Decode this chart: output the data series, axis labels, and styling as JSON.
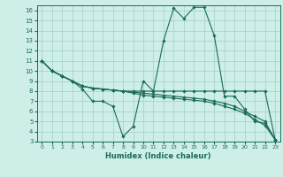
{
  "title": "",
  "xlabel": "Humidex (Indice chaleur)",
  "ylabel": "",
  "xlim": [
    -0.5,
    23.5
  ],
  "ylim": [
    3,
    16.5
  ],
  "xticks": [
    0,
    1,
    2,
    3,
    4,
    5,
    6,
    7,
    8,
    9,
    10,
    11,
    12,
    13,
    14,
    15,
    16,
    17,
    18,
    19,
    20,
    21,
    22,
    23
  ],
  "yticks": [
    3,
    4,
    5,
    6,
    7,
    8,
    9,
    10,
    11,
    12,
    13,
    14,
    15,
    16
  ],
  "bg_color": "#ceeee8",
  "grid_color": "#a8d4cc",
  "line_color": "#1a6b5a",
  "lines": [
    {
      "x": [
        0,
        1,
        2,
        3,
        4,
        5,
        6,
        7,
        8,
        9,
        10,
        11,
        12,
        13,
        14,
        15,
        16,
        17,
        18,
        19,
        20,
        21,
        22,
        23
      ],
      "y": [
        11,
        10,
        9.5,
        9,
        8.2,
        7,
        7,
        6.5,
        3.5,
        4.5,
        9,
        8,
        13,
        16.2,
        15.2,
        16.3,
        16.3,
        13.5,
        7.5,
        7.5,
        6.2,
        5,
        4.8,
        3.2
      ]
    },
    {
      "x": [
        0,
        1,
        2,
        3,
        4,
        5,
        6,
        7,
        8,
        9,
        10,
        11,
        12,
        13,
        14,
        15,
        16,
        17,
        18,
        19,
        20,
        21,
        22,
        23
      ],
      "y": [
        11,
        10,
        9.5,
        9,
        8.5,
        8.3,
        8.2,
        8.1,
        8.0,
        8.0,
        8.0,
        8.0,
        8.0,
        8.0,
        8.0,
        8.0,
        8.0,
        8.0,
        8.0,
        8.0,
        8.0,
        8.0,
        8.0,
        3.2
      ]
    },
    {
      "x": [
        0,
        1,
        2,
        3,
        4,
        5,
        6,
        7,
        8,
        9,
        10,
        11,
        12,
        13,
        14,
        15,
        16,
        17,
        18,
        19,
        20,
        21,
        22,
        23
      ],
      "y": [
        11,
        10,
        9.5,
        9,
        8.5,
        8.3,
        8.2,
        8.1,
        8.0,
        7.9,
        7.8,
        7.7,
        7.6,
        7.5,
        7.4,
        7.3,
        7.2,
        7.0,
        6.8,
        6.5,
        6.0,
        5.5,
        5.0,
        3.2
      ]
    },
    {
      "x": [
        0,
        1,
        2,
        3,
        4,
        5,
        6,
        7,
        8,
        9,
        10,
        11,
        12,
        13,
        14,
        15,
        16,
        17,
        18,
        19,
        20,
        21,
        22,
        23
      ],
      "y": [
        11,
        10,
        9.5,
        9,
        8.5,
        8.3,
        8.2,
        8.1,
        8.0,
        7.8,
        7.6,
        7.5,
        7.4,
        7.3,
        7.2,
        7.1,
        7.0,
        6.8,
        6.5,
        6.2,
        5.8,
        5.2,
        4.6,
        3.2
      ]
    }
  ]
}
